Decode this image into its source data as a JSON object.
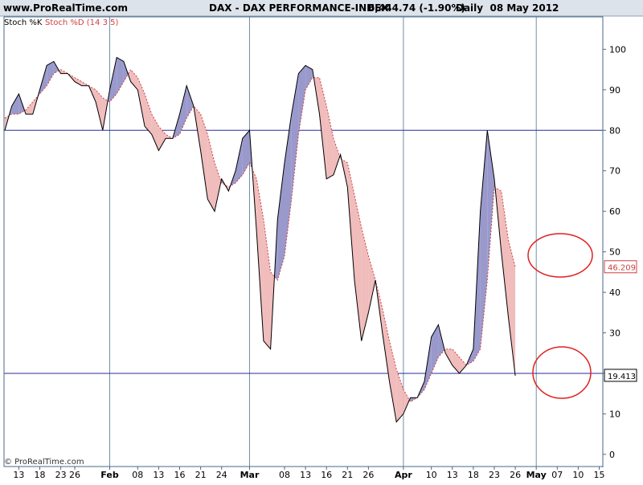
{
  "header": {
    "site": "www.ProRealTime.com",
    "instrument": "DAX - DAX PERFORMANCE-INDEX",
    "quote": "6,444.74 (-1.90%)",
    "period": "Daily  08 May 2012"
  },
  "legend": {
    "k_label": "Stoch %K",
    "d_label": "Stoch %D (14 3 5)",
    "k_color": "#000000",
    "d_color": "#d04040"
  },
  "copyright": "© ProRealTime.com",
  "colors": {
    "fill_k_above": "#9999cc",
    "fill_d_above": "#f0bcbc",
    "hline": "#2a2a9a",
    "vline": "#6e8fa8",
    "frame": "#4a6a8a",
    "header_bg": "#dde3ea",
    "circle": "#e02020"
  },
  "chart_data": {
    "type": "line",
    "title": "DAX - DAX PERFORMANCE-INDEX",
    "ylim": [
      -3,
      108
    ],
    "yticks": [
      0,
      10,
      20,
      30,
      40,
      50,
      60,
      70,
      80,
      90,
      100
    ],
    "hlines": [
      80,
      20
    ],
    "x_tick_labels": [
      {
        "i": 2,
        "label": "13"
      },
      {
        "i": 5,
        "label": "18"
      },
      {
        "i": 8,
        "label": "23"
      },
      {
        "i": 10,
        "label": "26"
      },
      {
        "i": 15,
        "label": "Feb",
        "major": true
      },
      {
        "i": 19,
        "label": "08"
      },
      {
        "i": 22,
        "label": "13"
      },
      {
        "i": 25,
        "label": "16"
      },
      {
        "i": 28,
        "label": "21"
      },
      {
        "i": 31,
        "label": "24"
      },
      {
        "i": 35,
        "label": "Mar",
        "major": true
      },
      {
        "i": 40,
        "label": "08"
      },
      {
        "i": 43,
        "label": "13"
      },
      {
        "i": 46,
        "label": "16"
      },
      {
        "i": 49,
        "label": "21"
      },
      {
        "i": 52,
        "label": "26"
      },
      {
        "i": 57,
        "label": "Apr",
        "major": true
      },
      {
        "i": 61,
        "label": "10"
      },
      {
        "i": 64,
        "label": "13"
      },
      {
        "i": 67,
        "label": "18"
      },
      {
        "i": 70,
        "label": "23"
      },
      {
        "i": 73,
        "label": "26"
      },
      {
        "i": 76,
        "label": "May",
        "major": true
      },
      {
        "i": 79,
        "label": "07"
      },
      {
        "i": 82,
        "label": "10"
      },
      {
        "i": 85,
        "label": "15"
      }
    ],
    "series": [
      {
        "name": "Stoch %K",
        "values": [
          80,
          86,
          89,
          84,
          84,
          90,
          96,
          97,
          94,
          94,
          92,
          91,
          91,
          87,
          80,
          90,
          98,
          97,
          92,
          90,
          81,
          79,
          75,
          78,
          78,
          84,
          91,
          86,
          75,
          63,
          60,
          68,
          65,
          70,
          78,
          80,
          55,
          28,
          26,
          58,
          72,
          84,
          94,
          96,
          95,
          84,
          68,
          69,
          74,
          66,
          43,
          28,
          35,
          43,
          30,
          18,
          8,
          10,
          14,
          14,
          18,
          29,
          32,
          25,
          22,
          20,
          22,
          26,
          60,
          80,
          68,
          50,
          34,
          19.413
        ]
      },
      {
        "name": "Stoch %D",
        "values": [
          83,
          84,
          84,
          85,
          87,
          89,
          91,
          94,
          95,
          94,
          93,
          92,
          91,
          90,
          88,
          87,
          89,
          92,
          95,
          93,
          89,
          84,
          81,
          79,
          78,
          79,
          83,
          86,
          84,
          79,
          72,
          67,
          66,
          67,
          69,
          72,
          68,
          58,
          45,
          43,
          49,
          63,
          79,
          90,
          93,
          93,
          86,
          78,
          73,
          72,
          64,
          56,
          49,
          43,
          36,
          28,
          21,
          16,
          13,
          14,
          16,
          20,
          24,
          26,
          26,
          24,
          22,
          23,
          26,
          43,
          66,
          65,
          53,
          46.209
        ]
      }
    ],
    "value_labels": [
      {
        "series": "Stoch %D",
        "value": "46.209"
      },
      {
        "series": "Stoch %K",
        "value": "19.413"
      }
    ],
    "annotations": [
      "red circle around last %D value",
      "red circle around last %K value"
    ]
  }
}
